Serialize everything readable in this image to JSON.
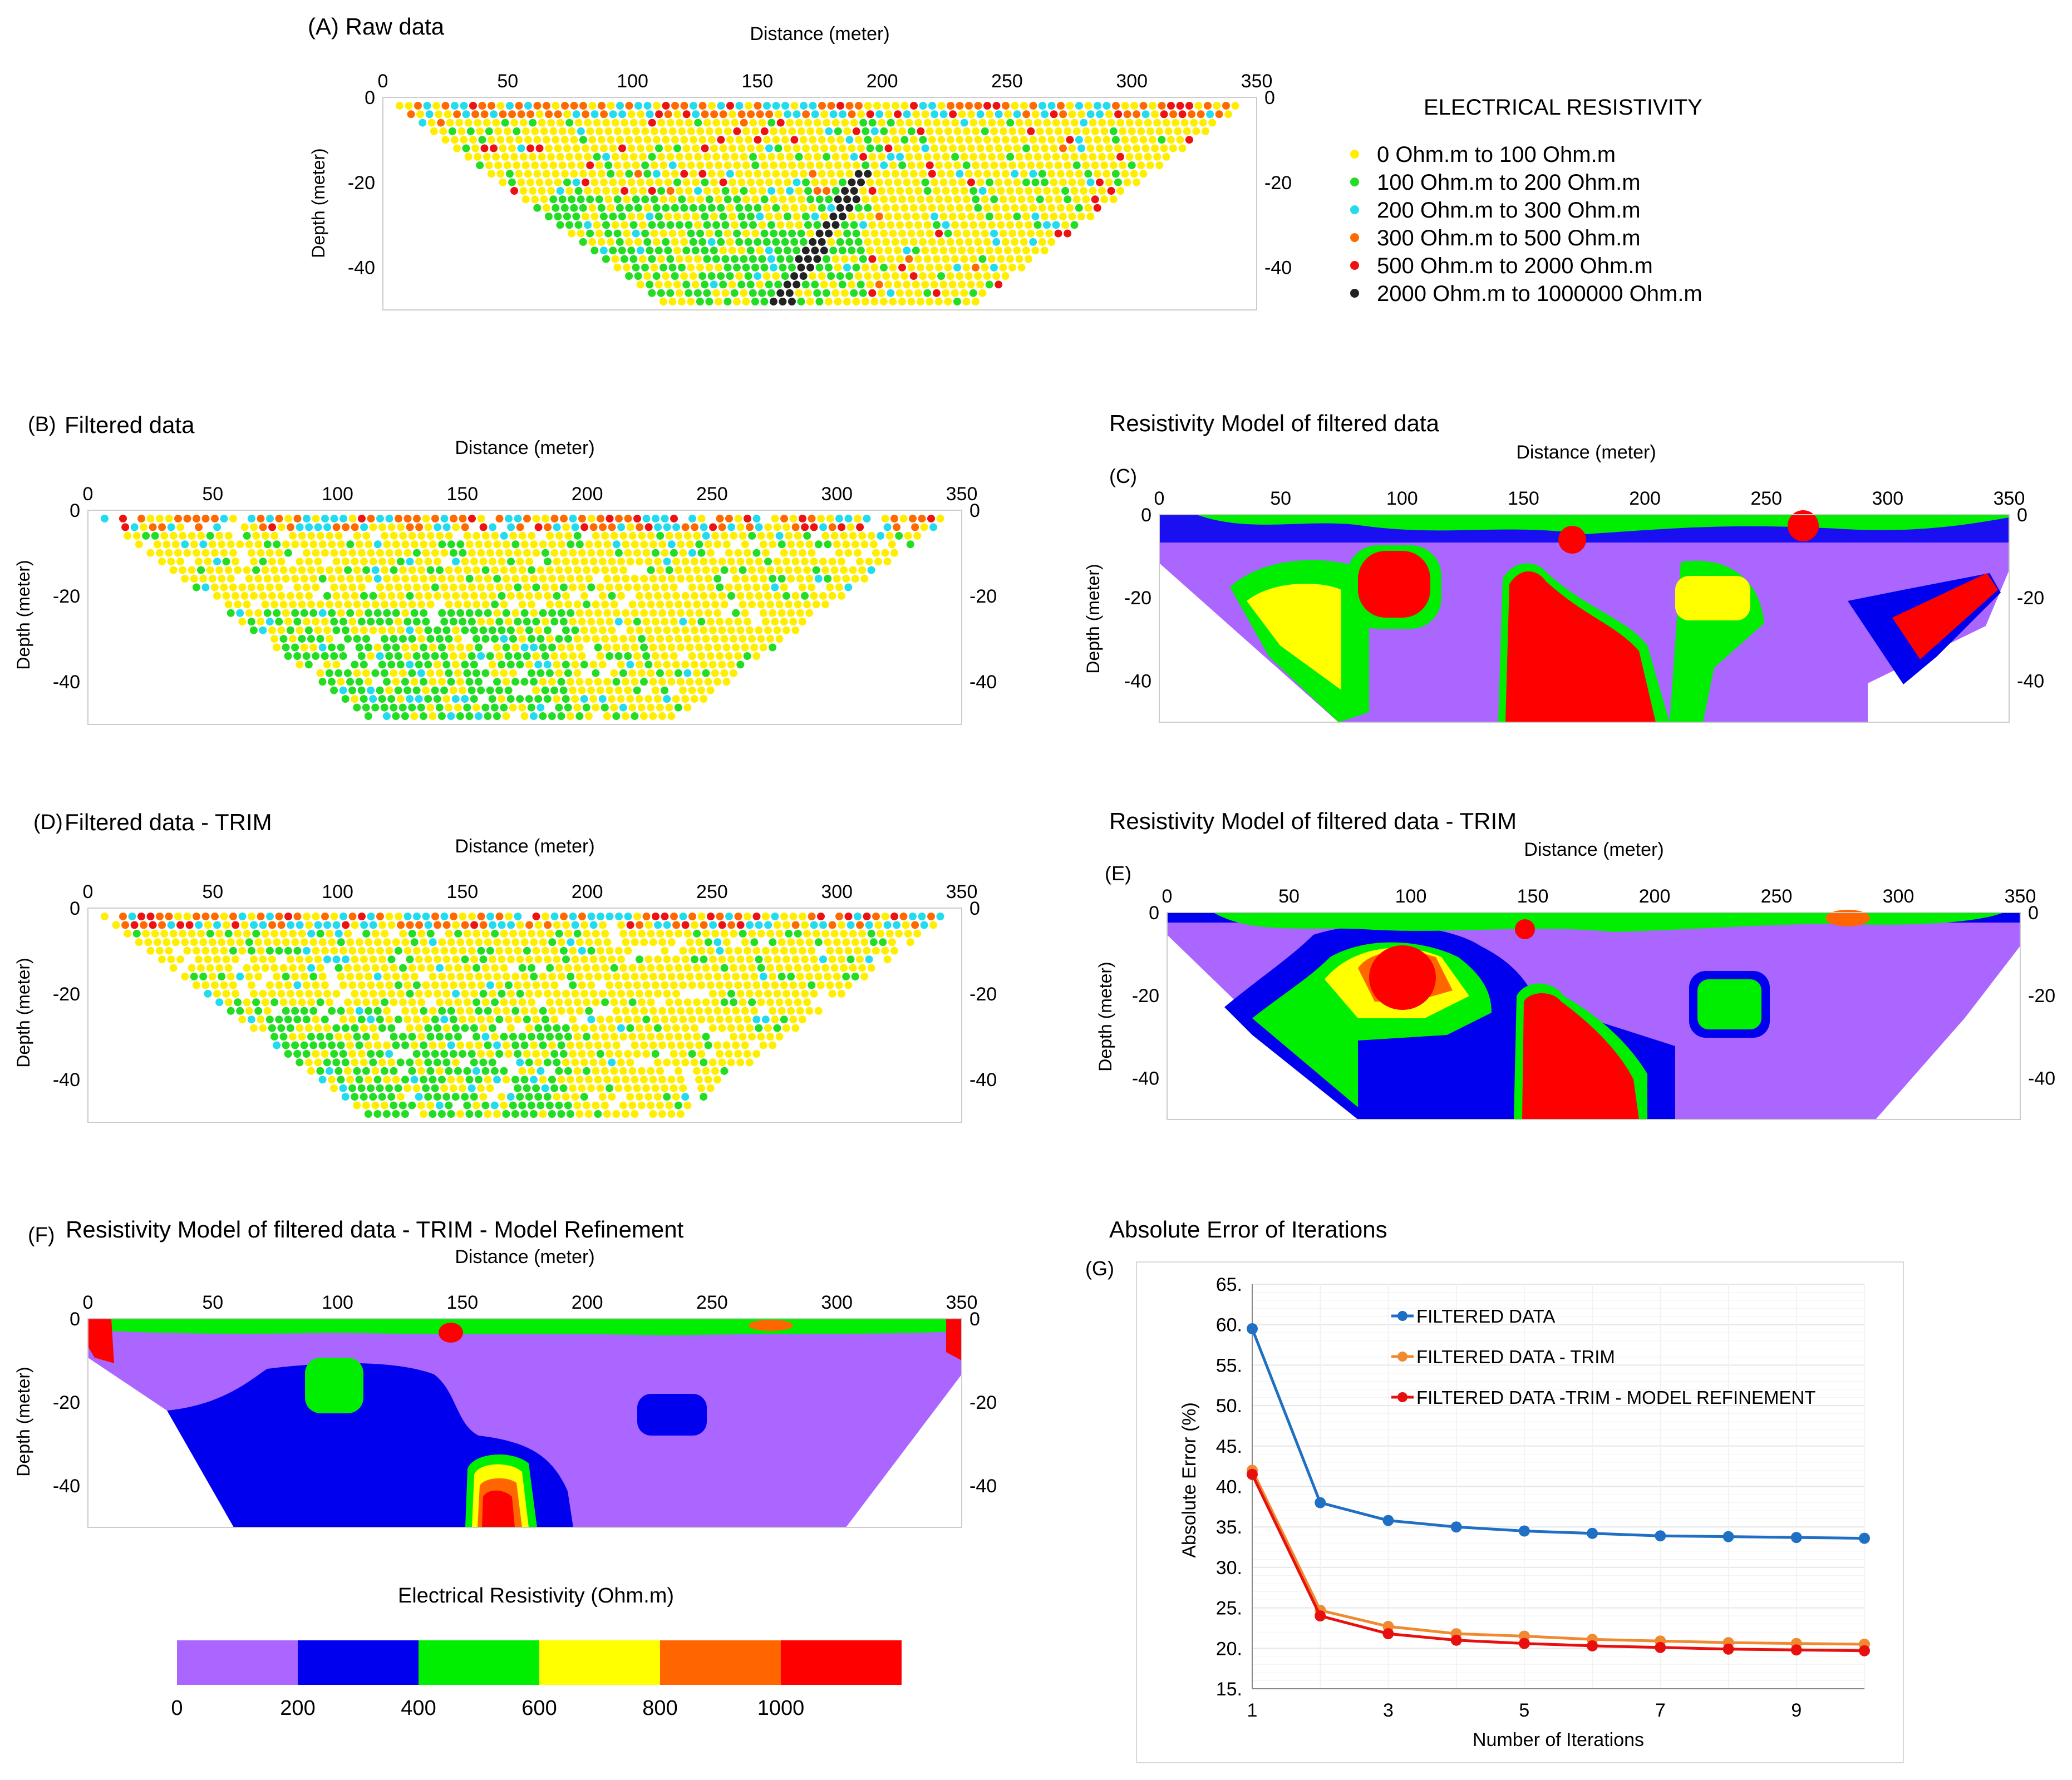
{
  "panels": {
    "A": {
      "label": "(A) Raw data",
      "xlabel": "Distance (meter)",
      "ylabel": "Depth (meter)"
    },
    "B": {
      "label": "(B)",
      "title": "Filtered data",
      "xlabel": "Distance (meter)",
      "ylabel": "Depth (meter)"
    },
    "C": {
      "label": "(C)",
      "title": "Resistivity Model of filtered data",
      "xlabel": "Distance (meter)",
      "ylabel": "Depth (meter)"
    },
    "D": {
      "label": "(D)",
      "title": "Filtered data - TRIM",
      "xlabel": "Distance (meter)",
      "ylabel": "Depth (meter)"
    },
    "E": {
      "label": "(E)",
      "title": "Resistivity Model of filtered data - TRIM",
      "xlabel": "Distance (meter)",
      "ylabel": "Depth (meter)"
    },
    "F": {
      "label": "(F)",
      "title": "Resistivity Model of filtered data - TRIM - Model Refinement",
      "xlabel": "Distance (meter)",
      "ylabel": "Depth (meter)"
    },
    "G": {
      "label": "(G)",
      "title": "Absolute Error of Iterations",
      "xlabel": "Number of Iterations",
      "ylabel": "Absolute Error (%)"
    }
  },
  "distance_ticks": [
    0,
    50,
    100,
    150,
    200,
    250,
    300,
    350
  ],
  "depth_ticks": [
    0,
    -20,
    -40
  ],
  "depth_range": [
    -50,
    0
  ],
  "distance_range": [
    0,
    350
  ],
  "legend": {
    "title": "ELECTRICAL RESISTIVITY",
    "items": [
      {
        "label": "0 Ohm.m  to  100 Ohm.m",
        "color": "#ffee00"
      },
      {
        "label": "100 Ohm.m  to  200 Ohm.m",
        "color": "#22dd22"
      },
      {
        "label": "200 Ohm.m  to  300 Ohm.m",
        "color": "#22dcee"
      },
      {
        "label": "300 Ohm.m  to  500 Ohm.m",
        "color": "#ff6a00"
      },
      {
        "label": "500 Ohm.m  to  2000 Ohm.m",
        "color": "#ee1111"
      },
      {
        "label": "2000 Ohm.m  to  1000000 Ohm.m",
        "color": "#222222"
      }
    ]
  },
  "colorbar": {
    "title": "Electrical Resistivity (Ohm.m)",
    "ticks": [
      "0",
      "200",
      "400",
      "600",
      "800",
      "1000"
    ],
    "colors": [
      "#aa66ff",
      "#0000ee",
      "#00ee00",
      "#ffff00",
      "#ff6600",
      "#ff0000"
    ]
  },
  "chart_data": {
    "type": "line",
    "title": "Absolute Error of Iterations",
    "xlabel": "Number of Iterations",
    "ylabel": "Absolute Error (%)",
    "x": [
      1,
      2,
      3,
      4,
      5,
      6,
      7,
      8,
      9,
      10
    ],
    "xticks": [
      "1",
      "3",
      "5",
      "7",
      "9"
    ],
    "yticks": [
      "15.",
      "20.",
      "25.",
      "30.",
      "35.",
      "40.",
      "45.",
      "50.",
      "55.",
      "60.",
      "65."
    ],
    "ylim": [
      15,
      65
    ],
    "series": [
      {
        "name": "FILTERED DATA",
        "color": "#1f6fc4",
        "values": [
          59.5,
          38.0,
          35.8,
          35.0,
          34.5,
          34.2,
          33.9,
          33.8,
          33.7,
          33.6
        ]
      },
      {
        "name": "FILTERED DATA - TRIM",
        "color": "#f08a30",
        "values": [
          42.0,
          24.7,
          22.7,
          21.8,
          21.5,
          21.1,
          20.9,
          20.7,
          20.6,
          20.5
        ]
      },
      {
        "name": "FILTERED DATA -TRIM - MODEL REFINEMENT",
        "color": "#e8100f",
        "values": [
          41.5,
          24.0,
          21.8,
          21.0,
          20.6,
          20.3,
          20.1,
          19.9,
          19.8,
          19.7
        ]
      }
    ]
  }
}
